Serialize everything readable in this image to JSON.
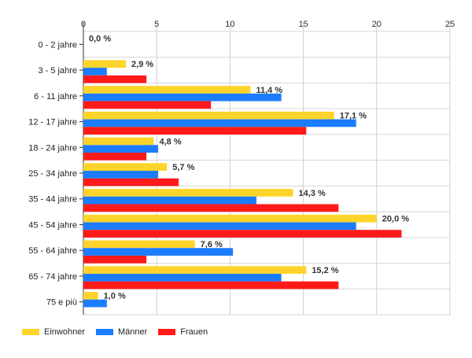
{
  "chart_data": {
    "type": "bar",
    "orientation": "horizontal",
    "categories": [
      "0 - 2 jahre",
      "3 - 5 jahre",
      "6 - 11 jahre",
      "12 - 17 jahre",
      "18 - 24 jahre",
      "25 - 34 jahre",
      "35 - 44 jahre",
      "45 - 54 jahre",
      "55 - 64 jahre",
      "65 - 74 jahre",
      "75 e più"
    ],
    "series": [
      {
        "name": "Einwohner",
        "color": "#FFD42A",
        "values": [
          0.0,
          2.9,
          11.4,
          17.1,
          4.8,
          5.7,
          14.3,
          20.0,
          7.6,
          15.2,
          1.0
        ]
      },
      {
        "name": "Männer",
        "color": "#1C7CFF",
        "values": [
          0.0,
          1.6,
          13.5,
          18.6,
          5.1,
          5.1,
          11.8,
          18.6,
          10.2,
          13.5,
          1.6
        ]
      },
      {
        "name": "Frauen",
        "color": "#FF1A1A",
        "values": [
          0.0,
          4.3,
          8.7,
          15.2,
          4.3,
          6.5,
          17.4,
          21.7,
          4.3,
          17.4,
          0.0
        ]
      }
    ],
    "data_labels": [
      "0,0 %",
      "2,9 %",
      "11,4 %",
      "17,1 %",
      "4,8 %",
      "5,7 %",
      "14,3 %",
      "20,0 %",
      "7,6 %",
      "15,2 %",
      "1,0 %"
    ],
    "xticks": [
      "0",
      "5",
      "10",
      "15",
      "20",
      "25"
    ],
    "xlim": [
      0,
      25
    ],
    "grid": true,
    "legend_position": "bottom-left",
    "title": "",
    "xlabel": "",
    "ylabel": ""
  }
}
